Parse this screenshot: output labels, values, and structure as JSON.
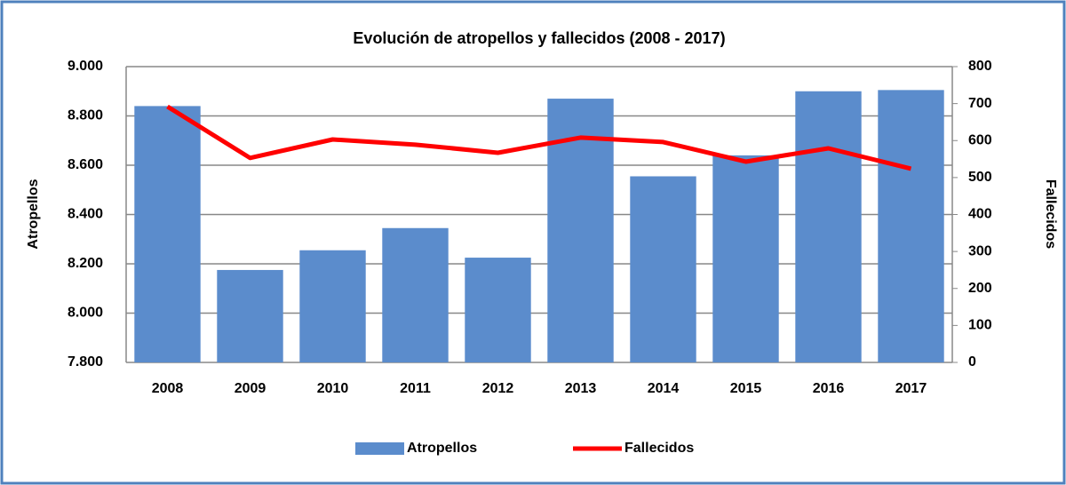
{
  "chart_data": {
    "type": "bar+line",
    "title": "Evolución  de atropellos y fallecidos (2008 - 2017)",
    "ylabel": "Atropellos",
    "y2label": "Fallecidos",
    "categories": [
      "2008",
      "2009",
      "2010",
      "2011",
      "2012",
      "2013",
      "2014",
      "2015",
      "2016",
      "2017"
    ],
    "series": [
      {
        "name": "Atropellos",
        "type": "bar",
        "color": "#5b8ccc",
        "values": [
          8840,
          8175,
          8255,
          8345,
          8225,
          8870,
          8555,
          8640,
          8900,
          8905
        ]
      },
      {
        "name": "Fallecidos",
        "type": "line",
        "axis": "y2",
        "color": "#ff0000",
        "values": [
          692,
          553,
          603,
          589,
          567,
          608,
          596,
          543,
          579,
          524
        ]
      }
    ],
    "ylim": [
      7800,
      9000
    ],
    "yticks": [
      {
        "value": 7800,
        "label": "7.800"
      },
      {
        "value": 8000,
        "label": "8.000"
      },
      {
        "value": 8200,
        "label": "8.200"
      },
      {
        "value": 8400,
        "label": "8.400"
      },
      {
        "value": 8600,
        "label": "8.600"
      },
      {
        "value": 8800,
        "label": "8.800"
      },
      {
        "value": 9000,
        "label": "9.000"
      }
    ],
    "y2lim": [
      0,
      800
    ],
    "y2ticks": [
      0,
      100,
      200,
      300,
      400,
      500,
      600,
      700,
      800
    ],
    "grid": true,
    "legend": "bottom"
  }
}
